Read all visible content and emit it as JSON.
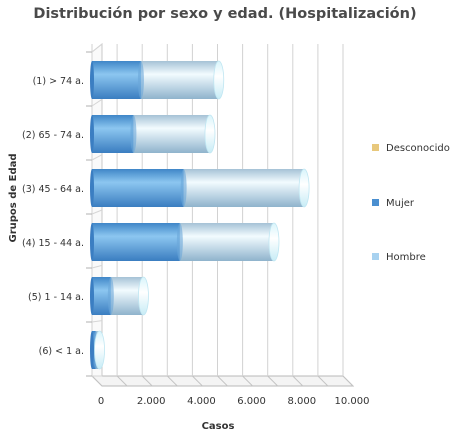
{
  "chart_data": {
    "type": "bar",
    "orientation": "horizontal",
    "stacked": true,
    "title": "Distribución por sexo y edad. (Hospitalización)",
    "xlabel": "Casos",
    "ylabel": "Grupos de Edad",
    "categories": [
      "(1) > 74 a.",
      "(2) 65 - 74 a.",
      "(3) 45 - 64 a.",
      "(4) 15 - 44 a.",
      "(5) 1 - 14 a.",
      "(6) < 1 a."
    ],
    "series": [
      {
        "name": "Desconocido",
        "color": "#e8c87c",
        "values": [
          0,
          0,
          0,
          0,
          0,
          0
        ]
      },
      {
        "name": "Mujer",
        "color": "#4a8fd0",
        "values": [
          1950,
          1650,
          3650,
          3500,
          750,
          150
        ]
      },
      {
        "name": "Hombre",
        "color": "#a8d2f0",
        "values": [
          3100,
          3050,
          4800,
          3750,
          1300,
          150
        ]
      }
    ],
    "xlim": [
      0,
      10000
    ],
    "xticks": [
      "0",
      "2.000",
      "4.000",
      "6.000",
      "8.000",
      "10.000"
    ],
    "grid": true,
    "legend_position": "right"
  }
}
